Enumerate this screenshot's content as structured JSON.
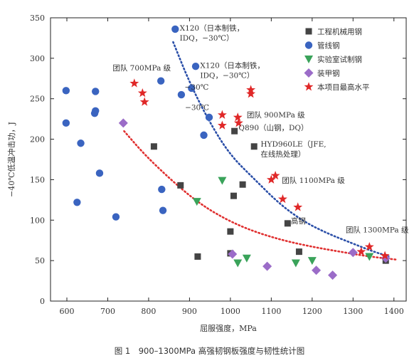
{
  "caption": "图 1　900–1300MPa 高强韧钢板强度与韧性统计图",
  "colors": {
    "engineering": "#444444",
    "pipeline": "#3a64c0",
    "lab": "#3aa35a",
    "armor": "#9b6cc8",
    "project": "#e02828",
    "blue_curve": "#2b4fa8",
    "red_curve": "#e03030"
  },
  "chart_data": {
    "type": "scatter",
    "xlabel": "屈服强度，MPa",
    "ylabel": "−40℃低温冲击功，J",
    "xlim": [
      560,
      1430
    ],
    "ylim": [
      0,
      350
    ],
    "xticks": [
      "600",
      "700",
      "800",
      "900",
      "1000",
      "1100",
      "1200",
      "1300",
      "1400"
    ],
    "yticks": [
      "0",
      "50",
      "100",
      "150",
      "200",
      "250",
      "300",
      "350"
    ],
    "legend_position": "top-right",
    "legend": [
      {
        "key": "engineering",
        "label": "工程机械用钢",
        "marker": "square"
      },
      {
        "key": "pipeline",
        "label": "管线钢",
        "marker": "circle"
      },
      {
        "key": "lab",
        "label": "实验室试制钢",
        "marker": "triangle"
      },
      {
        "key": "armor",
        "label": "装甲钢",
        "marker": "diamond"
      },
      {
        "key": "project",
        "label": "本项目最高水平",
        "marker": "star"
      }
    ],
    "series": [
      {
        "key": "engineering",
        "marker": "square",
        "points": [
          [
            813,
            191
          ],
          [
            878,
            143
          ],
          [
            920,
            55
          ],
          [
            1000,
            86
          ],
          [
            1000,
            59
          ],
          [
            1008,
            130
          ],
          [
            1010,
            210
          ],
          [
            1030,
            144
          ],
          [
            1058,
            191
          ],
          [
            1140,
            96
          ],
          [
            1168,
            61
          ],
          [
            1380,
            50
          ]
        ]
      },
      {
        "key": "pipeline",
        "marker": "circle",
        "points": [
          [
            598,
            260
          ],
          [
            598,
            220
          ],
          [
            625,
            122
          ],
          [
            634,
            195
          ],
          [
            668,
            232
          ],
          [
            670,
            235
          ],
          [
            670,
            259
          ],
          [
            680,
            158
          ],
          [
            720,
            104
          ],
          [
            830,
            272
          ],
          [
            832,
            138
          ],
          [
            835,
            112
          ],
          [
            865,
            336
          ],
          [
            880,
            255
          ],
          [
            905,
            263
          ],
          [
            915,
            290
          ],
          [
            935,
            205
          ],
          [
            948,
            227
          ]
        ]
      },
      {
        "key": "lab",
        "marker": "triangle",
        "points": [
          [
            918,
            123
          ],
          [
            980,
            149
          ],
          [
            1018,
            47
          ],
          [
            1040,
            53
          ],
          [
            1160,
            47
          ],
          [
            1200,
            50
          ],
          [
            1340,
            55
          ]
        ]
      },
      {
        "key": "armor",
        "marker": "diamond",
        "points": [
          [
            738,
            220
          ],
          [
            1005,
            58
          ],
          [
            1090,
            43
          ],
          [
            1210,
            38
          ],
          [
            1250,
            32
          ],
          [
            1300,
            60
          ],
          [
            1380,
            53
          ]
        ]
      },
      {
        "key": "project",
        "marker": "star",
        "points": [
          [
            765,
            269
          ],
          [
            785,
            257
          ],
          [
            790,
            246
          ],
          [
            980,
            230
          ],
          [
            980,
            217
          ],
          [
            1018,
            227
          ],
          [
            1020,
            220
          ],
          [
            1050,
            261
          ],
          [
            1050,
            256
          ],
          [
            1100,
            150
          ],
          [
            1110,
            155
          ],
          [
            1128,
            126
          ],
          [
            1165,
            116
          ],
          [
            1320,
            61
          ],
          [
            1340,
            67
          ],
          [
            1378,
            56
          ]
        ]
      }
    ],
    "trend_curves": [
      {
        "key": "blue_curve",
        "points": [
          [
            860,
            320
          ],
          [
            900,
            270
          ],
          [
            950,
            220
          ],
          [
            1000,
            180
          ],
          [
            1060,
            150
          ],
          [
            1120,
            120
          ],
          [
            1180,
            98
          ],
          [
            1240,
            83
          ],
          [
            1300,
            71
          ],
          [
            1350,
            61
          ],
          [
            1390,
            55
          ]
        ]
      },
      {
        "key": "red_curve",
        "points": [
          [
            740,
            210
          ],
          [
            790,
            181
          ],
          [
            850,
            152
          ],
          [
            910,
            126
          ],
          [
            970,
            106
          ],
          [
            1040,
            89
          ],
          [
            1120,
            76
          ],
          [
            1200,
            67
          ],
          [
            1280,
            60
          ],
          [
            1340,
            55
          ],
          [
            1410,
            51
          ]
        ]
      }
    ],
    "annotations": [
      {
        "lines": [
          "X120（日本制铁，",
          "IDQ，−30℃）"
        ],
        "x": 876,
        "y": 334
      },
      {
        "lines": [
          "X120（日本制铁，",
          "IDQ，−30℃）"
        ],
        "x": 926,
        "y": 288
      },
      {
        "lines": [
          "−30℃"
        ],
        "x": 888,
        "y": 261
      },
      {
        "lines": [
          "−30℃"
        ],
        "x": 889,
        "y": 236
      },
      {
        "lines": [
          "团队 700MPa 级"
        ],
        "x": 712,
        "y": 285
      },
      {
        "lines": [
          "团队 900MPa 级"
        ],
        "x": 1040,
        "y": 227
      },
      {
        "lines": [
          "Q890（山钢，DQ）"
        ],
        "x": 1020,
        "y": 211
      },
      {
        "lines": [
          "HYD960LE（JFE,",
          "在线热处理）"
        ],
        "x": 1074,
        "y": 191
      },
      {
        "lines": [
          "团队 1100MPa 级"
        ],
        "x": 1126,
        "y": 146
      },
      {
        "lines": [
          "高钢"
        ],
        "x": 1148,
        "y": 96
      },
      {
        "lines": [
          "团队 1300MPa 级"
        ],
        "x": 1282,
        "y": 85
      }
    ]
  }
}
